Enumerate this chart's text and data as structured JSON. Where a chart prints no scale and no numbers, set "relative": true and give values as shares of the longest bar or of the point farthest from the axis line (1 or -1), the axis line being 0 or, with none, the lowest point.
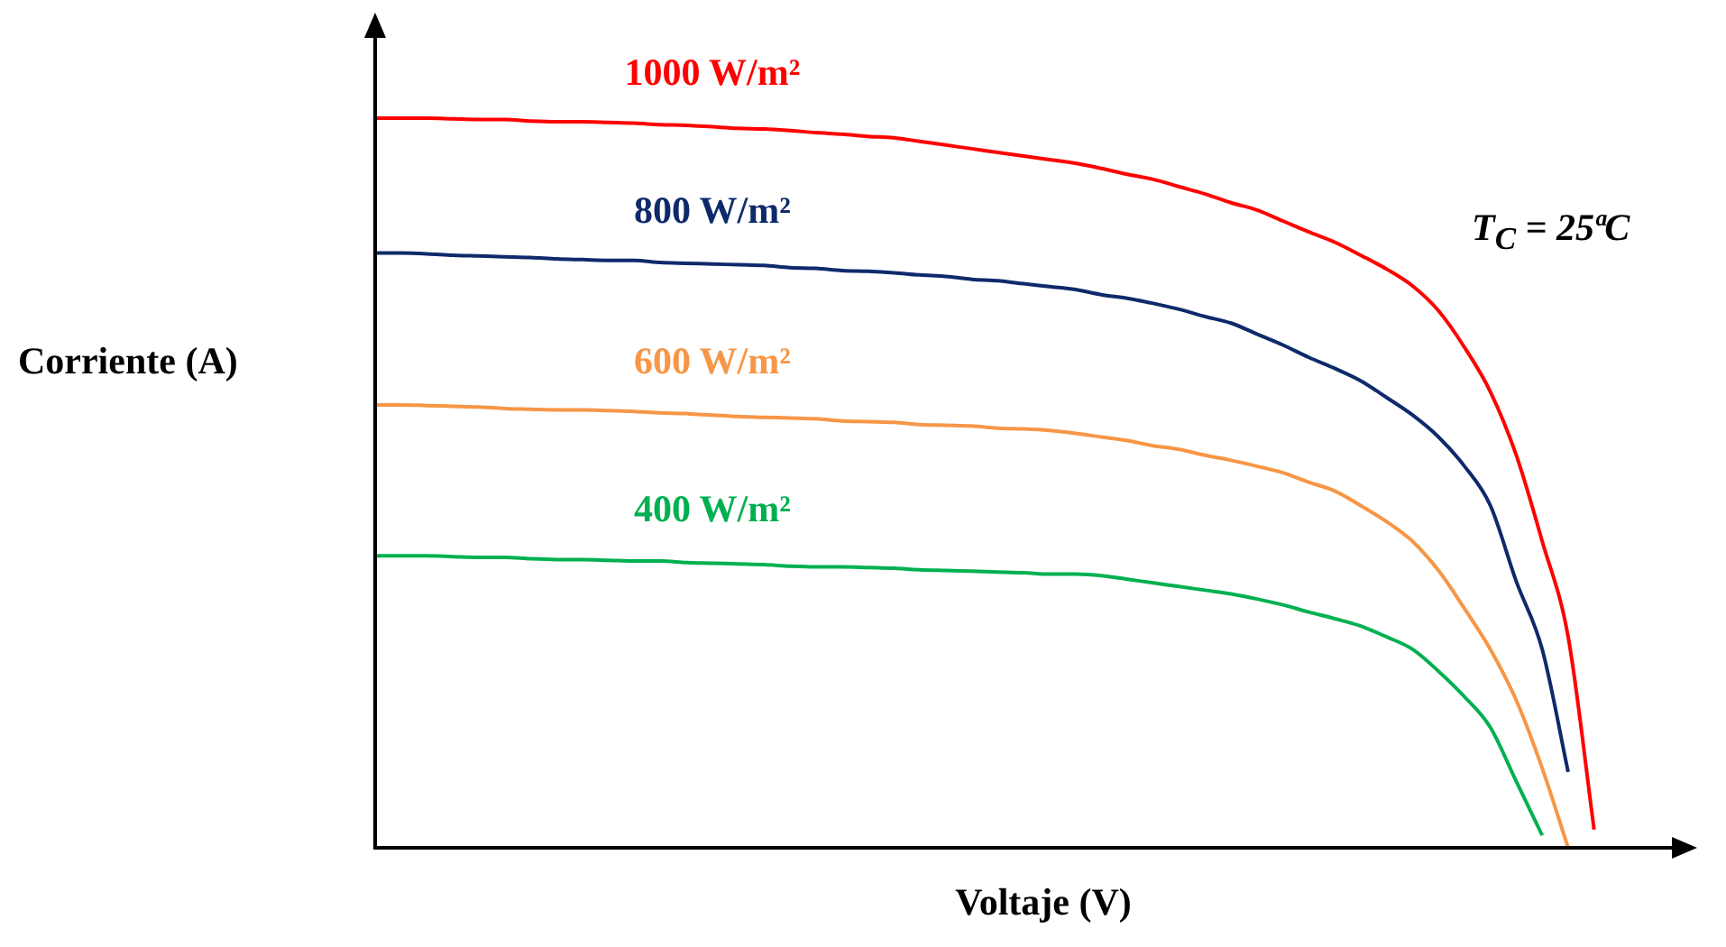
{
  "chart_data": {
    "type": "line",
    "relative": true,
    "marker": "none",
    "xlabel": "Voltaje (V)",
    "ylabel": "Corriente (A)",
    "annotations": [
      "T$_{C}$ = 25ªC"
    ],
    "categories": [
      null,
      null,
      null,
      null,
      null,
      null,
      null,
      null,
      null,
      null,
      null,
      null,
      null,
      null,
      null,
      null,
      null,
      null,
      null,
      null,
      null,
      null,
      null,
      null,
      null,
      null,
      null,
      null,
      null,
      null,
      null,
      null,
      null,
      null,
      null,
      null,
      null,
      null,
      null,
      null,
      null,
      null,
      null,
      null,
      null,
      null,
      null,
      null,
      null,
      null,
      null
    ],
    "series": [
      {
        "name": "1000 W/m²",
        "color": "#ff0000",
        "values": [
          1.0,
          1.0,
          1.0,
          0.999,
          0.998,
          0.998,
          0.996,
          0.995,
          0.995,
          0.994,
          0.993,
          0.991,
          0.99,
          0.988,
          0.986,
          0.985,
          0.983,
          0.98,
          0.978,
          0.975,
          0.973,
          0.968,
          0.963,
          0.958,
          0.953,
          0.948,
          0.943,
          0.938,
          0.931,
          0.923,
          0.916,
          0.906,
          0.896,
          0.884,
          0.874,
          0.859,
          0.844,
          0.83,
          0.812,
          0.793,
          0.77,
          0.736,
          0.686,
          0.625,
          0.538,
          0.42,
          0.289,
          0.025,
          null,
          null,
          null
        ]
      },
      {
        "name": "800 W/m²",
        "color": "#0e2a6b",
        "values": [
          0.815,
          0.815,
          0.814,
          0.812,
          0.811,
          0.81,
          0.809,
          0.807,
          0.806,
          0.805,
          0.805,
          0.802,
          0.801,
          0.8,
          0.799,
          0.798,
          0.795,
          0.794,
          0.791,
          0.79,
          0.788,
          0.785,
          0.783,
          0.779,
          0.777,
          0.773,
          0.769,
          0.765,
          0.758,
          0.753,
          0.746,
          0.738,
          0.728,
          0.719,
          0.704,
          0.689,
          0.672,
          0.657,
          0.64,
          0.617,
          0.593,
          0.563,
          0.523,
          0.469,
          0.365,
          0.272,
          0.104,
          null,
          null,
          null,
          null
        ]
      },
      {
        "name": "600 W/m²",
        "color": "#f79646",
        "values": [
          0.607,
          0.607,
          0.606,
          0.605,
          0.604,
          0.602,
          0.601,
          0.6,
          0.6,
          0.599,
          0.598,
          0.596,
          0.595,
          0.593,
          0.591,
          0.59,
          0.589,
          0.588,
          0.585,
          0.584,
          0.583,
          0.58,
          0.579,
          0.578,
          0.575,
          0.574,
          0.572,
          0.568,
          0.563,
          0.558,
          0.551,
          0.546,
          0.538,
          0.531,
          0.523,
          0.514,
          0.501,
          0.489,
          0.469,
          0.447,
          0.42,
          0.38,
          0.328,
          0.272,
          0.202,
          0.109,
          0,
          null,
          null,
          null,
          null
        ]
      },
      {
        "name": "400 W/m²",
        "color": "#00b050",
        "values": [
          0.4,
          0.4,
          0.4,
          0.399,
          0.398,
          0.398,
          0.396,
          0.395,
          0.395,
          0.394,
          0.393,
          0.393,
          0.391,
          0.39,
          0.389,
          0.388,
          0.386,
          0.385,
          0.385,
          0.384,
          0.383,
          0.381,
          0.38,
          0.379,
          0.378,
          0.377,
          0.375,
          0.375,
          0.373,
          0.368,
          0.363,
          0.358,
          0.353,
          0.348,
          0.341,
          0.333,
          0.323,
          0.314,
          0.304,
          0.289,
          0.272,
          0.242,
          0.207,
          0.165,
          0.091,
          0.017,
          null,
          null,
          null,
          null,
          null
        ]
      }
    ]
  }
}
